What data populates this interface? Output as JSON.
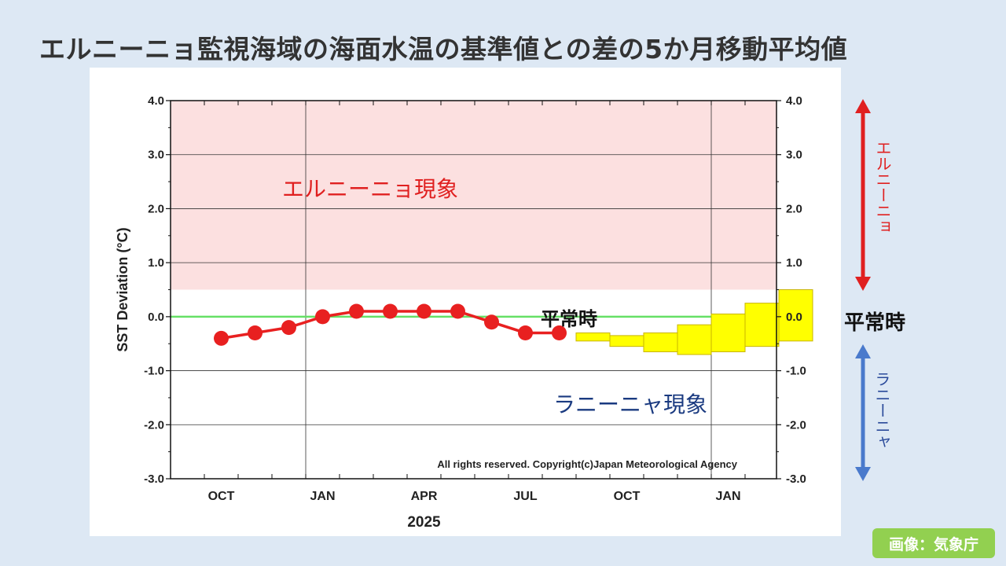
{
  "title": "エルニーニョ監視海域の海面水温の基準値との差の5か月移動平均値",
  "credit": "画像：気象庁",
  "side_labels": {
    "elnino": "エルニーニョ",
    "lanina": "ラニーニャ",
    "normal": "平常時"
  },
  "colors": {
    "elnino_zone": "#fce0e0",
    "lanina_zone": "#dffcff",
    "zero_line": "#66e066",
    "observed": "#e82020",
    "forecast_fill": "#ffff00",
    "forecast_stroke": "#c8b400",
    "elnino_arrow": "#e02020",
    "lanina_arrow": "#4a7acc",
    "credit_bg": "#92d050"
  },
  "chart_data": {
    "type": "line",
    "ylabel": "SST Deviation (°C)",
    "ylim": [
      -3.0,
      4.0
    ],
    "yticks": [
      "4.0",
      "3.0",
      "2.0",
      "1.0",
      "0.0",
      "-1.0",
      "-2.0",
      "-3.0"
    ],
    "year_label": "2025",
    "month_ticks": [
      "OCT",
      "JAN",
      "APR",
      "JUL",
      "OCT",
      "JAN"
    ],
    "grid": true,
    "zones": {
      "elnino": {
        "from": 0.5,
        "to": 4.0,
        "label": "エルニーニョ現象"
      },
      "lanina": {
        "from": -3.0,
        "to": -0.5,
        "label": "ラニーニャ現象"
      },
      "normal_label": "平常時"
    },
    "observed": {
      "months": [
        "2024-10",
        "2024-11",
        "2024-12",
        "2025-01",
        "2025-02",
        "2025-03",
        "2025-04",
        "2025-05",
        "2025-06",
        "2025-07",
        "2025-08"
      ],
      "values": [
        -0.4,
        -0.3,
        -0.2,
        0.0,
        0.1,
        0.1,
        0.1,
        0.1,
        -0.1,
        -0.3,
        -0.3
      ]
    },
    "forecast": {
      "months": [
        "2025-09",
        "2025-10",
        "2025-11",
        "2025-12",
        "2026-01",
        "2026-02",
        "2026-03"
      ],
      "low": [
        -0.45,
        -0.55,
        -0.65,
        -0.7,
        -0.65,
        -0.55,
        -0.45
      ],
      "high": [
        -0.3,
        -0.35,
        -0.3,
        -0.15,
        0.05,
        0.25,
        0.5
      ]
    },
    "copyright": "All rights reserved. Copyright(c)Japan Meteorological Agency"
  }
}
